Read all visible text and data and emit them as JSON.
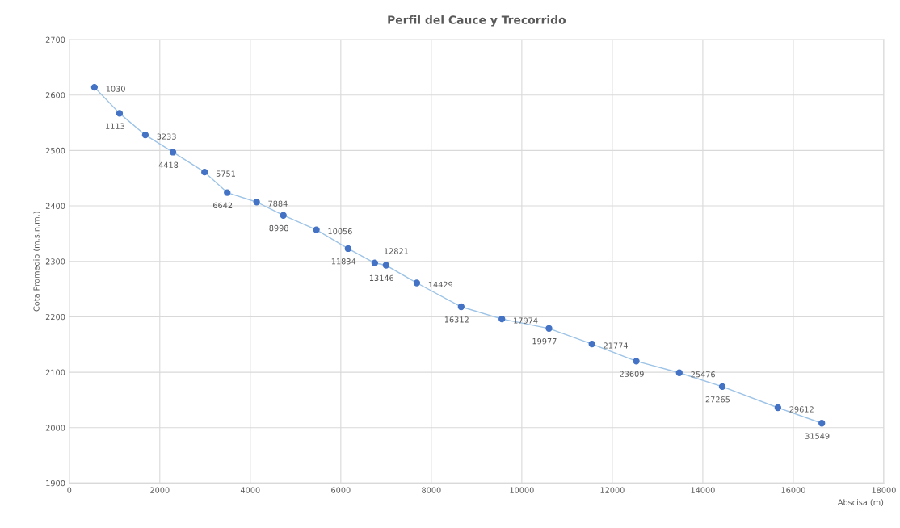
{
  "chart_data": {
    "type": "line",
    "title": "Perfil del Cauce y Trecorrido",
    "xlabel": "Abscisa (m)",
    "ylabel": "Cota Promedio (m.s.n.m.)",
    "x": [
      555,
      1110,
      1680,
      2290,
      2990,
      3490,
      4140,
      4730,
      5460,
      6160,
      6750,
      7000,
      7680,
      8660,
      9560,
      10600,
      11550,
      12530,
      13480,
      14430,
      15660,
      16630
    ],
    "series": [
      {
        "color": "#4472c4",
        "values": [
          2614,
          2567,
          2528,
          2497,
          2461,
          2424,
          2407,
          2383,
          2357,
          2323,
          2297,
          2293,
          2261,
          2218,
          2196,
          2179,
          2151,
          2120,
          2099,
          2074,
          2036,
          2008
        ]
      }
    ],
    "annotations": [
      {
        "text": "1030",
        "x": 555,
        "y": 2614
      },
      {
        "text": "1113",
        "x": 1110,
        "y": 2567
      },
      {
        "text": "3233",
        "x": 1680,
        "y": 2528
      },
      {
        "text": "4418",
        "x": 2290,
        "y": 2497
      },
      {
        "text": "5751",
        "x": 2990,
        "y": 2461
      },
      {
        "text": "6642",
        "x": 3490,
        "y": 2424
      },
      {
        "text": "7884",
        "x": 4140,
        "y": 2407
      },
      {
        "text": "8998",
        "x": 4730,
        "y": 2383
      },
      {
        "text": "10056",
        "x": 5460,
        "y": 2357
      },
      {
        "text": "11834",
        "x": 6160,
        "y": 2323
      },
      {
        "text": "12821",
        "x": 6750,
        "y": 2297
      },
      {
        "text": "13146",
        "x": 7000,
        "y": 2293
      },
      {
        "text": "14429",
        "x": 7680,
        "y": 2261
      },
      {
        "text": "16312",
        "x": 8660,
        "y": 2218
      },
      {
        "text": "17974",
        "x": 9560,
        "y": 2196
      },
      {
        "text": "19977",
        "x": 10600,
        "y": 2179
      },
      {
        "text": "21774",
        "x": 11550,
        "y": 2151
      },
      {
        "text": "23609",
        "x": 12530,
        "y": 2120
      },
      {
        "text": "25476",
        "x": 13480,
        "y": 2099
      },
      {
        "text": "27265",
        "x": 14430,
        "y": 2074
      },
      {
        "text": "29612",
        "x": 15660,
        "y": 2036
      },
      {
        "text": "31549",
        "x": 16630,
        "y": 2008
      }
    ],
    "xlim": [
      0,
      18000
    ],
    "xticks": [
      0,
      2000,
      4000,
      6000,
      8000,
      10000,
      12000,
      14000,
      16000,
      18000
    ],
    "ylim": [
      1900,
      2700
    ],
    "yticks": [
      1900,
      2000,
      2100,
      2200,
      2300,
      2400,
      2500,
      2600,
      2700
    ],
    "grid": true,
    "marker": "circle",
    "line_style": "solid"
  }
}
